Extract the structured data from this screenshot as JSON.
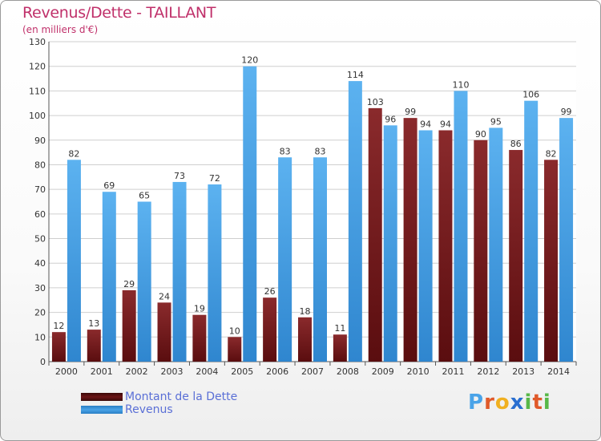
{
  "header": {
    "title": "Revenus/Dette - TAILLANT",
    "subtitle": "(en milliers d'€)"
  },
  "colors": {
    "dette": "#7a1c1e",
    "revenus": "#4aa3e8",
    "grid": "#cfcfcf",
    "axis_text": "#333333",
    "title": "#c0306a",
    "legend_text": "#5a6fd6"
  },
  "legend": {
    "items": [
      {
        "label": "Montant de la Dette",
        "color": "#6b1416"
      },
      {
        "label": "Revenus",
        "color": "#4aa3e8"
      }
    ]
  },
  "brand": {
    "letters": [
      "P",
      "r",
      "o",
      "x",
      "i",
      "t",
      "i"
    ],
    "colors": [
      "#4aa3e8",
      "#e05a2a",
      "#f0b020",
      "#2a6fd0",
      "#58b848",
      "#e05a2a",
      "#58b848"
    ]
  },
  "chart_data": {
    "type": "bar",
    "title": "Revenus/Dette - TAILLANT",
    "ylabel": "(en milliers d'€)",
    "xlabel": "",
    "categories": [
      "2000",
      "2001",
      "2002",
      "2003",
      "2004",
      "2005",
      "2006",
      "2007",
      "2008",
      "2009",
      "2010",
      "2011",
      "2012",
      "2013",
      "2014"
    ],
    "ylim": [
      0,
      130
    ],
    "yticks": [
      0,
      10,
      20,
      30,
      40,
      50,
      60,
      70,
      80,
      90,
      100,
      110,
      120,
      130
    ],
    "grid": true,
    "legend_position": "bottom-left",
    "series": [
      {
        "name": "Montant de la Dette",
        "values": [
          12,
          13,
          29,
          24,
          19,
          10,
          26,
          18,
          11,
          103,
          99,
          94,
          90,
          86,
          82
        ]
      },
      {
        "name": "Revenus",
        "values": [
          82,
          69,
          65,
          73,
          72,
          120,
          83,
          83,
          114,
          96,
          94,
          110,
          95,
          106,
          99
        ]
      }
    ]
  }
}
